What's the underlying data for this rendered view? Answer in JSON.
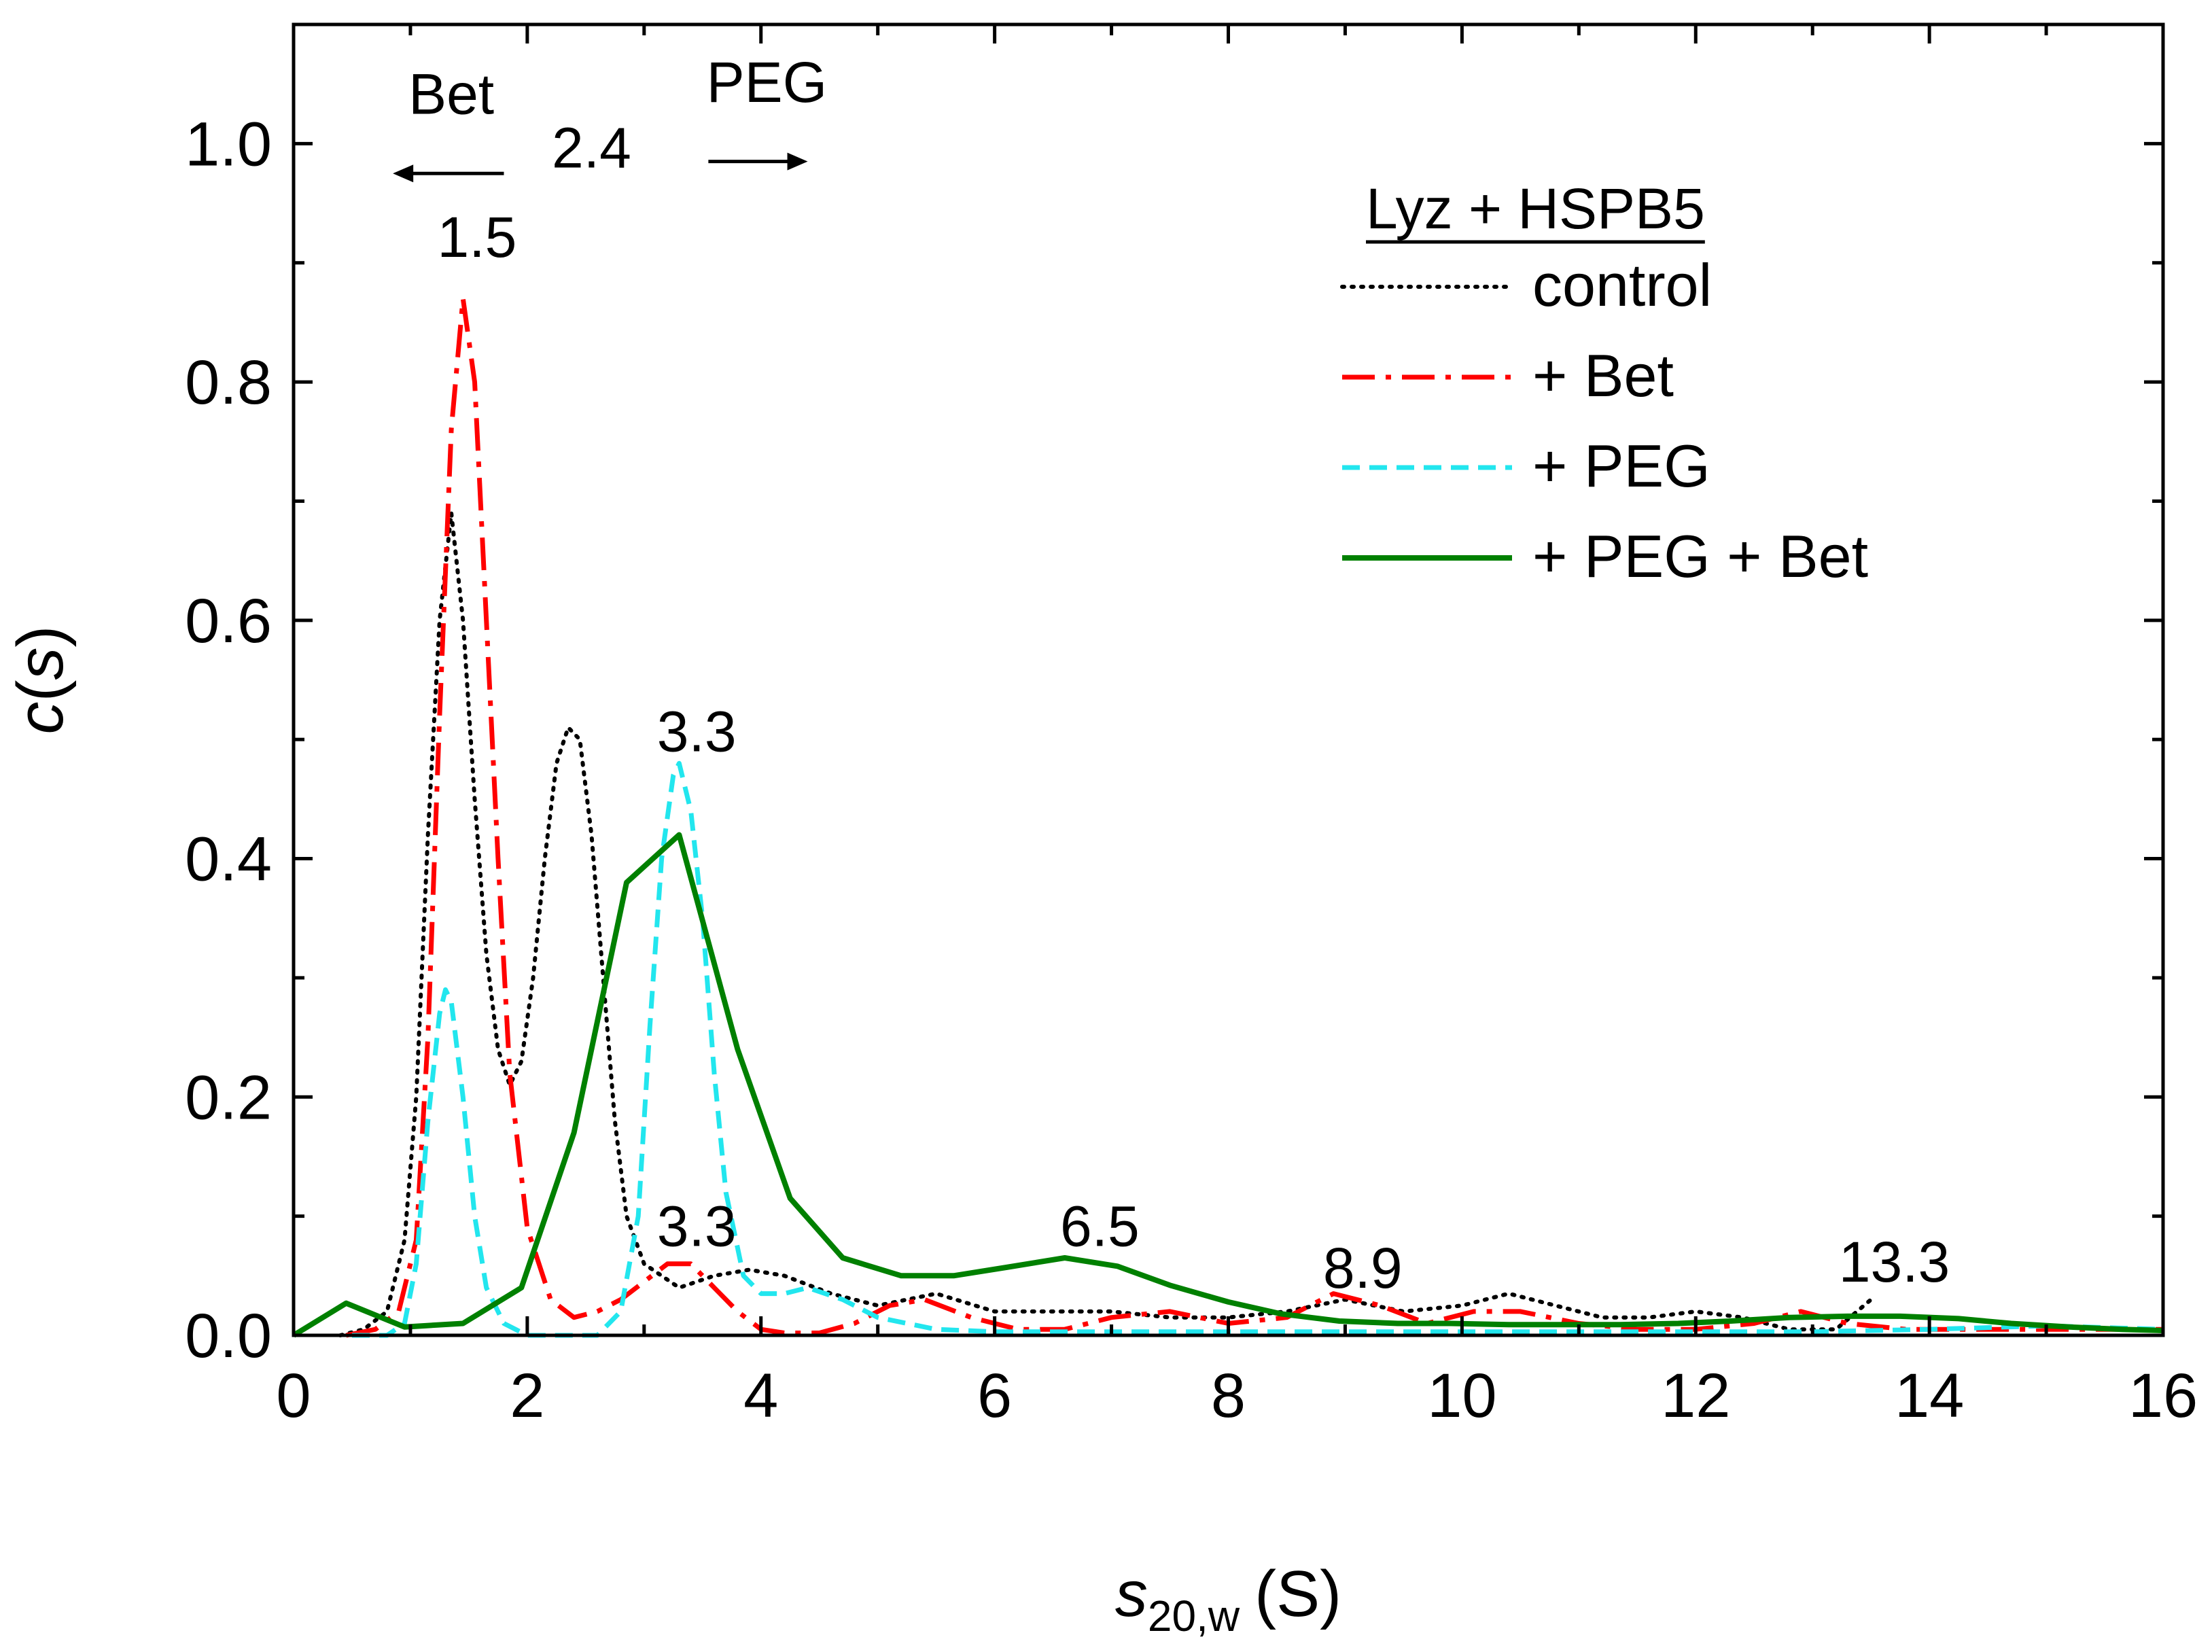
{
  "chart_data": {
    "type": "line",
    "title": "",
    "xlabel": {
      "main": "s",
      "sub": "20,w",
      "unit": "(S)"
    },
    "ylabel": {
      "main": "c",
      "arg": "s"
    },
    "xlim": [
      0,
      16
    ],
    "ylim": [
      0,
      1.1
    ],
    "xticks": [
      "0",
      "2",
      "4",
      "6",
      "8",
      "10",
      "12",
      "14",
      "16"
    ],
    "yticks": [
      "0.0",
      "0.2",
      "0.4",
      "0.6",
      "0.8",
      "1.0"
    ],
    "legend": {
      "title": "Lyz + HSPB5",
      "position": "top-right"
    },
    "series": [
      {
        "name": "control",
        "color": "#000000",
        "style": "dotted",
        "x": [
          0.4,
          0.6,
          0.8,
          0.95,
          1.05,
          1.15,
          1.25,
          1.35,
          1.45,
          1.55,
          1.65,
          1.75,
          1.85,
          1.95,
          2.05,
          2.15,
          2.25,
          2.35,
          2.45,
          2.55,
          2.65,
          2.75,
          2.85,
          3.0,
          3.3,
          3.6,
          3.9,
          4.2,
          4.6,
          5.0,
          5.5,
          6.0,
          6.5,
          7.0,
          7.5,
          8.0,
          8.5,
          9.0,
          9.5,
          10.0,
          10.4,
          10.8,
          11.2,
          11.6,
          12.0,
          12.4,
          12.8,
          13.2,
          13.5
        ],
        "y": [
          0.0,
          0.005,
          0.02,
          0.08,
          0.2,
          0.42,
          0.6,
          0.69,
          0.6,
          0.45,
          0.32,
          0.24,
          0.21,
          0.23,
          0.3,
          0.4,
          0.48,
          0.51,
          0.5,
          0.42,
          0.3,
          0.18,
          0.1,
          0.06,
          0.04,
          0.05,
          0.055,
          0.05,
          0.035,
          0.025,
          0.035,
          0.02,
          0.02,
          0.02,
          0.015,
          0.015,
          0.02,
          0.03,
          0.02,
          0.025,
          0.035,
          0.025,
          0.015,
          0.015,
          0.02,
          0.015,
          0.005,
          0.005,
          0.03
        ]
      },
      {
        "name": "+ Bet",
        "color": "#ff0000",
        "style": "dash-dot",
        "x": [
          0.45,
          0.7,
          0.9,
          1.05,
          1.15,
          1.25,
          1.35,
          1.45,
          1.55,
          1.65,
          1.75,
          1.85,
          2.0,
          2.2,
          2.4,
          2.6,
          2.8,
          3.0,
          3.2,
          3.4,
          3.6,
          3.8,
          4.0,
          4.2,
          4.5,
          4.8,
          5.1,
          5.4,
          5.8,
          6.2,
          6.6,
          7.0,
          7.5,
          8.0,
          8.5,
          8.9,
          9.3,
          9.7,
          10.1,
          10.5,
          11.0,
          11.5,
          12.0,
          12.5,
          12.9,
          13.3,
          13.8,
          14.3,
          15.0,
          16.0
        ],
        "y": [
          0.0,
          0.005,
          0.02,
          0.08,
          0.25,
          0.52,
          0.76,
          0.87,
          0.8,
          0.6,
          0.4,
          0.22,
          0.09,
          0.03,
          0.015,
          0.02,
          0.03,
          0.045,
          0.06,
          0.06,
          0.04,
          0.02,
          0.005,
          0.002,
          0.002,
          0.01,
          0.025,
          0.03,
          0.015,
          0.005,
          0.005,
          0.015,
          0.02,
          0.01,
          0.015,
          0.035,
          0.025,
          0.01,
          0.02,
          0.02,
          0.01,
          0.005,
          0.005,
          0.01,
          0.02,
          0.01,
          0.005,
          0.005,
          0.005,
          0.005
        ]
      },
      {
        "name": "+ PEG",
        "color": "#22e6ee",
        "style": "dashed",
        "x": [
          0.5,
          0.8,
          0.95,
          1.05,
          1.15,
          1.25,
          1.3,
          1.35,
          1.45,
          1.55,
          1.65,
          1.8,
          2.0,
          2.3,
          2.6,
          2.8,
          2.95,
          3.05,
          3.15,
          3.25,
          3.3,
          3.4,
          3.5,
          3.6,
          3.7,
          3.85,
          4.0,
          4.2,
          4.4,
          4.7,
          5.0,
          5.5,
          6.0,
          7.0,
          8.0,
          9.0,
          10.0,
          11.0,
          12.0,
          13.0,
          14.0,
          15.0,
          16.0
        ],
        "y": [
          0.0,
          0.0,
          0.01,
          0.06,
          0.18,
          0.27,
          0.29,
          0.28,
          0.2,
          0.1,
          0.04,
          0.01,
          0.0,
          0.0,
          0.0,
          0.02,
          0.1,
          0.26,
          0.4,
          0.47,
          0.48,
          0.44,
          0.35,
          0.22,
          0.12,
          0.05,
          0.035,
          0.035,
          0.04,
          0.03,
          0.015,
          0.005,
          0.003,
          0.003,
          0.003,
          0.003,
          0.003,
          0.003,
          0.003,
          0.003,
          0.005,
          0.008,
          0.005
        ]
      },
      {
        "name": "+ PEG + Bet",
        "color": "#008000",
        "style": "solid",
        "x": [
          0.0,
          0.45,
          0.95,
          1.45,
          1.95,
          2.4,
          2.85,
          3.3,
          3.8,
          4.25,
          4.7,
          5.2,
          5.65,
          6.1,
          6.6,
          7.05,
          7.5,
          8.0,
          8.45,
          8.95,
          9.45,
          9.9,
          10.4,
          10.9,
          11.35,
          11.85,
          12.3,
          12.8,
          13.3,
          13.75,
          14.25,
          14.7,
          15.2,
          15.65,
          16.0
        ],
        "y": [
          0.0,
          0.027,
          0.007,
          0.01,
          0.04,
          0.17,
          0.38,
          0.42,
          0.24,
          0.115,
          0.065,
          0.05,
          0.05,
          0.057,
          0.065,
          0.058,
          0.042,
          0.028,
          0.018,
          0.012,
          0.01,
          0.01,
          0.009,
          0.009,
          0.009,
          0.01,
          0.012,
          0.015,
          0.016,
          0.016,
          0.014,
          0.01,
          0.007,
          0.005,
          0.004
        ]
      }
    ],
    "annotations": [
      {
        "text": "1.5",
        "x": 1.57,
        "y": 0.905
      },
      {
        "text": "2.4",
        "x": 2.55,
        "y": 0.98
      },
      {
        "text": "3.3",
        "x": 3.45,
        "y": 0.49
      },
      {
        "text": "3.3",
        "x": 3.45,
        "y": 0.075
      },
      {
        "text": "6.5",
        "x": 6.9,
        "y": 0.075
      },
      {
        "text": "8.9",
        "x": 9.15,
        "y": 0.04
      },
      {
        "text": "13.3",
        "x": 13.7,
        "y": 0.045
      }
    ],
    "arrows": [
      {
        "label": "Bet",
        "direction": "left",
        "x_from": 1.8,
        "x_to": 0.85,
        "y": 0.975,
        "label_x": 1.35,
        "label_y": 1.025
      },
      {
        "label": "PEG",
        "direction": "right",
        "x_from": 3.55,
        "x_to": 4.4,
        "y": 0.985,
        "label_x": 4.05,
        "label_y": 1.035
      }
    ]
  }
}
